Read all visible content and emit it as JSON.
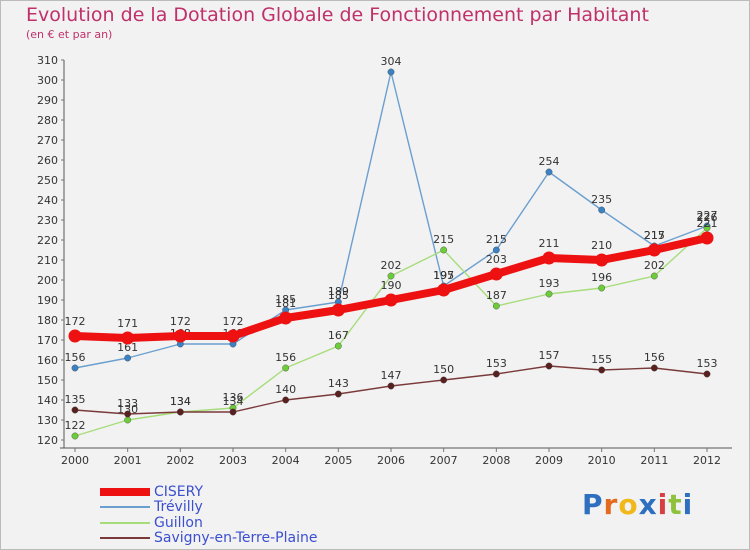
{
  "chart_data": {
    "type": "line",
    "title": "Evolution de la Dotation Globale de Fonctionnement par Habitant",
    "subtitle": "(en € et par an)",
    "x": [
      "2000",
      "2001",
      "2002",
      "2003",
      "2004",
      "2005",
      "2006",
      "2007",
      "2008",
      "2009",
      "2010",
      "2011",
      "2012"
    ],
    "ylim": [
      120,
      310
    ],
    "yticks": [
      120,
      130,
      140,
      150,
      160,
      170,
      180,
      190,
      200,
      210,
      220,
      230,
      240,
      250,
      260,
      270,
      280,
      290,
      300,
      310
    ],
    "grid": false,
    "series": [
      {
        "name": "Trévilly",
        "color": "#6b9fcf",
        "marker": "#3a82c4",
        "values": [
          156,
          161,
          168,
          168,
          185,
          189,
          304,
          197,
          215,
          254,
          235,
          217,
          227
        ],
        "labels": [
          "156",
          "161",
          "168",
          "168",
          "185",
          "189",
          "304",
          "197",
          "215",
          "254",
          "235",
          "217",
          "227"
        ]
      },
      {
        "name": "Guillon",
        "color": "#a6dd7a",
        "marker": "#6ccc3a",
        "values": [
          122,
          130,
          134,
          136,
          156,
          167,
          202,
          215,
          187,
          193,
          196,
          202,
          226
        ],
        "labels": [
          "122",
          "130",
          "134",
          "136",
          "156",
          "167",
          "202",
          "215",
          "187",
          "193",
          "196",
          "202",
          "226"
        ]
      },
      {
        "name": "Savigny-en-Terre-Plaine",
        "color": "#7a3a3a",
        "marker": "#5a1f1f",
        "values": [
          135,
          133,
          134,
          134,
          140,
          143,
          147,
          150,
          153,
          157,
          155,
          156,
          153
        ],
        "labels": [
          "135",
          "133",
          "134",
          "134",
          "140",
          "143",
          "147",
          "150",
          "153",
          "157",
          "155",
          "156",
          "153"
        ]
      },
      {
        "name": "CISERY",
        "color": "#ee1111",
        "marker": "#ee1111",
        "values": [
          172,
          171,
          172,
          172,
          181,
          185,
          190,
          195,
          203,
          211,
          210,
          215,
          221
        ],
        "labels": [
          "172",
          "171",
          "172",
          "172",
          "181",
          "185",
          "190",
          "195",
          "203",
          "211",
          "210",
          "215",
          "221"
        ]
      }
    ],
    "legend_order": [
      "CISERY",
      "Trévilly",
      "Guillon",
      "Savigny-en-Terre-Plaine"
    ]
  },
  "brand": {
    "letters": [
      "P",
      "r",
      "o",
      "x",
      "i",
      "t",
      "i"
    ],
    "colors": [
      "#2f6fc0",
      "#e36a1e",
      "#f0b81a",
      "#2f6fc0",
      "#d64040",
      "#8fc23c",
      "#2f6fc0"
    ]
  }
}
